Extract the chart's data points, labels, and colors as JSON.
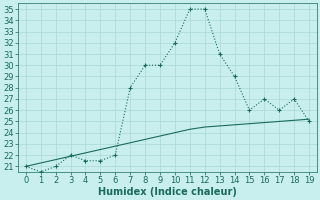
{
  "x": [
    0,
    1,
    2,
    3,
    4,
    5,
    6,
    7,
    8,
    9,
    10,
    11,
    12,
    13,
    14,
    15,
    16,
    17,
    18,
    19
  ],
  "y_curve": [
    21,
    20.5,
    21,
    22,
    21.5,
    21.5,
    22,
    28,
    30,
    30,
    32,
    35,
    35,
    31,
    29,
    26,
    27,
    26,
    27,
    25
  ],
  "y_line": [
    21,
    21.3,
    21.6,
    21.9,
    22.2,
    22.5,
    22.8,
    23.1,
    23.4,
    23.7,
    24.0,
    24.3,
    24.5,
    24.6,
    24.7,
    24.8,
    24.9,
    25.0,
    25.1,
    25.2
  ],
  "color": "#1a6b5a",
  "bg_color": "#c8eeee",
  "grid_color": "#aad8d8",
  "xlabel": "Humidex (Indice chaleur)",
  "ylim": [
    20.5,
    35.5
  ],
  "xlim": [
    -0.5,
    19.5
  ],
  "yticks": [
    21,
    22,
    23,
    24,
    25,
    26,
    27,
    28,
    29,
    30,
    31,
    32,
    33,
    34,
    35
  ],
  "xticks": [
    0,
    1,
    2,
    3,
    4,
    5,
    6,
    7,
    8,
    9,
    10,
    11,
    12,
    13,
    14,
    15,
    16,
    17,
    18,
    19
  ],
  "fontsize": 6.0,
  "xlabel_fontsize": 7.0
}
